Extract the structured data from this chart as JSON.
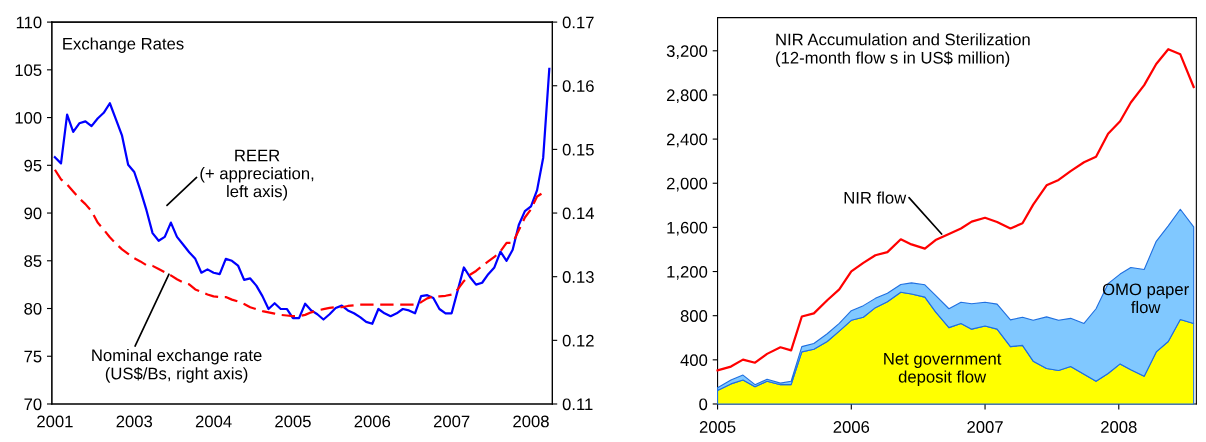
{
  "chart_data": [
    {
      "type": "line",
      "title": "Exchange Rates",
      "categories": [
        "2001",
        null,
        null,
        null,
        null,
        null,
        null,
        null,
        null,
        null,
        null,
        null,
        null,
        "2003",
        null,
        null,
        null,
        null,
        null,
        null,
        null,
        null,
        null,
        null,
        null,
        null,
        "2004",
        null,
        null,
        null,
        null,
        null,
        null,
        null,
        null,
        null,
        null,
        null,
        null,
        "2005",
        null,
        null,
        null,
        null,
        null,
        null,
        null,
        null,
        null,
        null,
        null,
        null,
        "2006",
        null,
        null,
        null,
        null,
        null,
        null,
        null,
        null,
        null,
        null,
        null,
        null,
        "2007",
        null,
        null,
        null,
        null,
        null,
        null,
        null,
        null,
        null,
        null,
        null,
        null,
        "2008",
        null,
        null,
        null
      ],
      "series": [
        {
          "name": "REER\n(+ appreciation,\nleft axis)",
          "color": "#0000ff",
          "line_style": "solid",
          "values": [
            95.85,
            95.2,
            100.3,
            98.5,
            99.4,
            99.6,
            99.1,
            99.9,
            100.5,
            101.5,
            99.8,
            98.1,
            95.05,
            94.3,
            92.4,
            90.3,
            87.9,
            87.1,
            87.5,
            89.0,
            87.5,
            86.7,
            85.9,
            85.2,
            83.75,
            84.1,
            83.75,
            83.6,
            85.2,
            85.0,
            84.5,
            83.0,
            83.15,
            82.4,
            81.3,
            79.95,
            80.55,
            79.95,
            79.95,
            79.0,
            79.0,
            80.5,
            79.8,
            79.4,
            78.85,
            79.4,
            80.05,
            80.3,
            79.8,
            79.5,
            79.1,
            78.6,
            78.4,
            79.95,
            79.5,
            79.2,
            79.5,
            79.95,
            79.8,
            79.5,
            81.3,
            81.4,
            81.1,
            79.95,
            79.5,
            79.5,
            81.9,
            84.3,
            83.3,
            82.5,
            82.7,
            83.6,
            84.3,
            85.95,
            85.0,
            86.15,
            88.75,
            90.2,
            90.7,
            92.4,
            95.8,
            105.1
          ]
        },
        {
          "name": "Nominal exchange rate\n(US$/Bs, right axis)",
          "color": "#ff0000",
          "line_style": "dashed",
          "axis": "y2",
          "values": [
            0.1468,
            0.1453,
            0.1445,
            0.1434,
            0.1423,
            0.1414,
            0.1403,
            0.1385,
            0.1374,
            0.1362,
            0.1352,
            0.1343,
            0.1336,
            0.1329,
            0.1324,
            0.1318,
            0.1317,
            0.1312,
            0.1307,
            0.1302,
            0.1296,
            0.1291,
            0.1288,
            0.128,
            0.1276,
            0.1272,
            0.1269,
            0.1268,
            0.1268,
            0.1264,
            0.1261,
            0.1257,
            0.1252,
            0.1249,
            0.1246,
            0.1244,
            0.1242,
            0.124,
            0.1239,
            0.1238,
            0.1238,
            0.124,
            0.1244,
            0.1247,
            0.1249,
            0.1251,
            0.1252,
            0.1252,
            0.1254,
            0.1255,
            0.1256,
            0.1256,
            0.1256,
            0.1256,
            0.1256,
            0.1256,
            0.1256,
            0.1256,
            0.1256,
            0.1256,
            0.126,
            0.1266,
            0.1269,
            0.1269,
            0.127,
            0.1272,
            0.128,
            0.1293,
            0.1303,
            0.1309,
            0.1317,
            0.1324,
            0.1331,
            0.134,
            0.1353,
            0.1353,
            0.1373,
            0.1393,
            0.1406,
            0.1426,
            0.1432,
            null
          ]
        }
      ],
      "ylim": [
        70,
        110
      ],
      "yticks": [
        70,
        75,
        80,
        85,
        90,
        95,
        100,
        105,
        110
      ],
      "y2lim": [
        0.11,
        0.17
      ],
      "y2ticks": [
        0.11,
        0.12,
        0.13,
        0.14,
        0.15,
        0.16,
        0.17
      ],
      "grid": false,
      "legend": false
    },
    {
      "type": "area",
      "title": "NIR Accumulation and Sterilization\n(12-month flow s in US$ million)",
      "stacked": true,
      "x": [
        2005.0,
        2005.1,
        2005.19,
        2005.28,
        2005.37,
        2005.47,
        2005.55,
        2005.63,
        2005.72,
        2005.82,
        2005.91,
        2006.0,
        2006.09,
        2006.18,
        2006.27,
        2006.37,
        2006.45,
        2006.55,
        2006.63,
        2006.73,
        2006.82,
        2006.9,
        2007.0,
        2007.09,
        2007.19,
        2007.28,
        2007.36,
        2007.46,
        2007.55,
        2007.64,
        2007.74,
        2007.83,
        2007.92,
        2008.01,
        2008.09,
        2008.19,
        2008.28,
        2008.37,
        2008.46,
        2008.56
      ],
      "series": [
        {
          "name": "Net government\ndeposit flow",
          "color": "#ffff00",
          "values": [
            122,
            182,
            217,
            157,
            206,
            175,
            175,
            472,
            496,
            566,
            660,
            758,
            786,
            873,
            926,
            1013,
            996,
            968,
            835,
            692,
            730,
            678,
            706,
            678,
            520,
            531,
            388,
            321,
            304,
            339,
            269,
            206,
            276,
            363,
            311,
            252,
            472,
            566,
            765,
            730
          ]
        },
        {
          "name": "OMO paper\nflow",
          "color": "#80c8ff",
          "values": [
            25,
            35,
            45,
            18,
            18,
            14,
            31,
            48,
            52,
            70,
            70,
            87,
            105,
            84,
            77,
            70,
            101,
            112,
            150,
            171,
            192,
            230,
            216,
            227,
            242,
            255,
            370,
            468,
            454,
            437,
            461,
            657,
            814,
            814,
            926,
            967,
            1002,
            1048,
            999,
            874
          ]
        },
        {
          "name": "NIR flow",
          "type": "line",
          "color": "#ff0000",
          "values": [
            304,
            339,
            402,
            374,
            454,
            514,
            486,
            793,
            821,
            940,
            1038,
            1202,
            1279,
            1348,
            1376,
            1492,
            1446,
            1408,
            1485,
            1541,
            1590,
            1652,
            1687,
            1649,
            1590,
            1638,
            1806,
            1981,
            2030,
            2110,
            2190,
            2239,
            2449,
            2561,
            2732,
            2889,
            3081,
            3214,
            3168,
            2872
          ]
        }
      ],
      "xlim": [
        2005,
        2008.58
      ],
      "xticks": [
        2005,
        2006,
        2007,
        2008
      ],
      "ylim": [
        0,
        3500
      ],
      "yticks": [
        0,
        400,
        800,
        {
          "value": 1200,
          "label": "1,200"
        },
        {
          "value": 1600,
          "label": "1,600"
        },
        {
          "value": 2000,
          "label": "2,000"
        },
        {
          "value": 2400,
          "label": "2,400"
        },
        {
          "value": 2800,
          "label": "2,800"
        },
        {
          "value": 3200,
          "label": "3,200"
        }
      ],
      "grid": false,
      "legend": false
    }
  ]
}
